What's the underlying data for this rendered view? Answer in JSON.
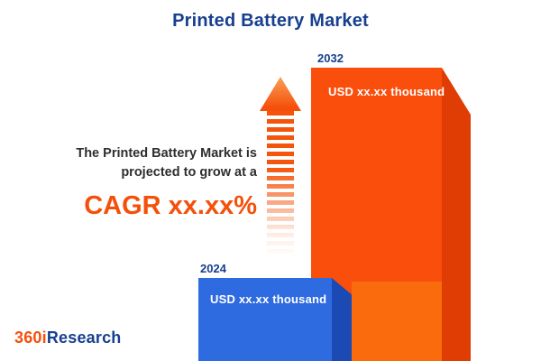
{
  "title": "Printed Battery Market",
  "annotation": {
    "line1": "The Printed Battery Market is",
    "line2": "projected to grow at a",
    "cagr": "CAGR xx.xx%"
  },
  "bars": {
    "bar_2024": {
      "year": "2024",
      "value_label": "USD xx.xx thousand",
      "color": "#2F6BE0"
    },
    "bar_2032": {
      "year": "2032",
      "value_label": "USD xx.xx thousand",
      "color": "#FA4E0C"
    }
  },
  "logo": {
    "prefix": "360i",
    "suffix": "Research"
  },
  "colors": {
    "navy": "#173F8F",
    "orange": "#F4500B",
    "orange_bar": "#FA4E0C",
    "orange_bar_side": "#E03D05",
    "orange_bar_light": "#F96B0C",
    "blue_bar": "#2F6BE0",
    "blue_bar_side": "#1B4AB5",
    "label_white": "#FFFFFF",
    "background": "#FFFFFF"
  },
  "chart_data": {
    "type": "bar",
    "title": "Printed Battery Market",
    "categories": [
      "2024",
      "2032"
    ],
    "series": [
      {
        "name": "Printed Battery Market",
        "values": [
          "xx.xx",
          "xx.xx"
        ],
        "unit": "USD thousand",
        "labels": [
          "USD xx.xx thousand",
          "USD xx.xx thousand"
        ]
      }
    ],
    "bar_colors": [
      "#2F6BE0",
      "#FA4E0C"
    ],
    "annotation": "The Printed Battery Market is projected to grow at a CAGR xx.xx%",
    "legend": false,
    "axes_visible": false,
    "notes": "Numeric values are masked as xx.xx in the source image; 2032 bar drawn much taller than 2024 bar with 3D side faces and a dashed upward growth arrow."
  }
}
